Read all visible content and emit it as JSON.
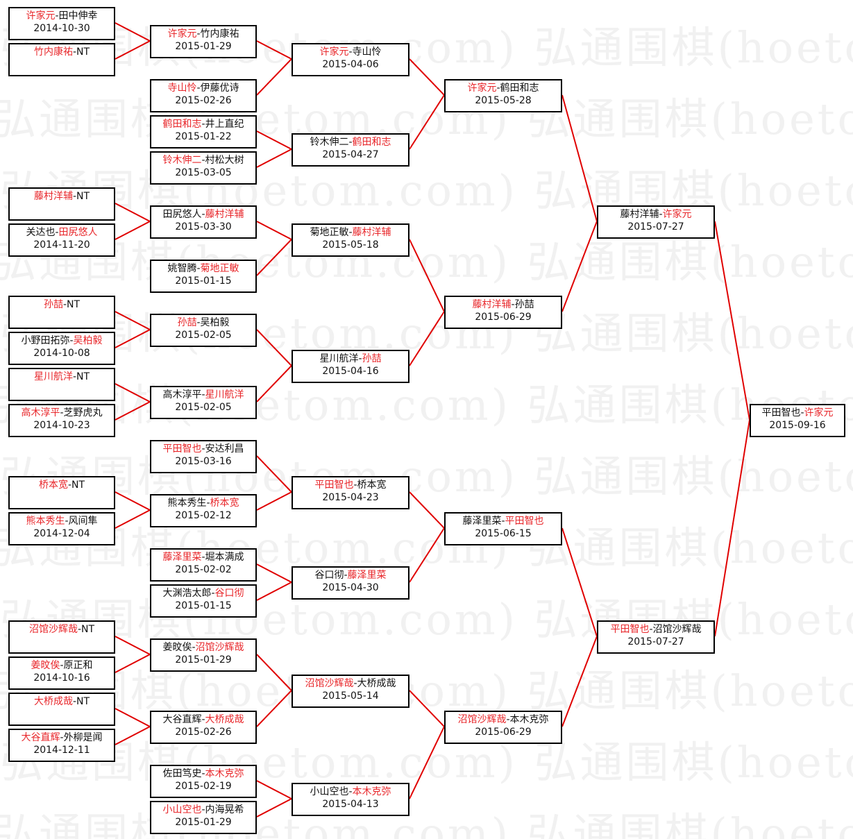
{
  "watermark": "弘通围棋(hoetom.com)",
  "colors": {
    "winner": "#e8262a",
    "connector": "#e00000",
    "border": "#000000"
  },
  "rounds": [
    [
      {
        "p1": "许家元",
        "p2": "田中伸幸",
        "winner": 1,
        "date": "2014-10-30"
      },
      {
        "p1": "竹内康祐",
        "p2": "NT",
        "winner": 1,
        "date": ""
      },
      {
        "p1": "藤村洋辅",
        "p2": "NT",
        "winner": 1,
        "date": ""
      },
      {
        "p1": "关达也",
        "p2": "田尻悠人",
        "winner": 2,
        "date": "2014-11-20"
      },
      {
        "p1": "孙喆",
        "p2": "NT",
        "winner": 1,
        "date": ""
      },
      {
        "p1": "小野田拓弥",
        "p2": "吴柏毅",
        "winner": 2,
        "date": "2014-10-08"
      },
      {
        "p1": "星川航洋",
        "p2": "NT",
        "winner": 1,
        "date": ""
      },
      {
        "p1": "高木淳平",
        "p2": "芝野虎丸",
        "winner": 1,
        "date": "2014-10-23"
      },
      {
        "p1": "桥本宽",
        "p2": "NT",
        "winner": 1,
        "date": ""
      },
      {
        "p1": "熊本秀生",
        "p2": "风间隼",
        "winner": 1,
        "date": "2014-12-04"
      },
      {
        "p1": "沼馆沙辉哉",
        "p2": "NT",
        "winner": 1,
        "date": ""
      },
      {
        "p1": "姜旼俟",
        "p2": "原正和",
        "winner": 1,
        "date": "2014-10-16"
      },
      {
        "p1": "大桥成哉",
        "p2": "NT",
        "winner": 1,
        "date": ""
      },
      {
        "p1": "大谷直辉",
        "p2": "外柳是闻",
        "winner": 1,
        "date": "2014-12-11"
      }
    ],
    [
      {
        "p1": "许家元",
        "p2": "竹内康祐",
        "winner": 1,
        "date": "2015-01-29"
      },
      {
        "p1": "寺山怜",
        "p2": "伊藤优诗",
        "winner": 1,
        "date": "2015-02-26"
      },
      {
        "p1": "鹤田和志",
        "p2": "井上直纪",
        "winner": 1,
        "date": "2015-01-22"
      },
      {
        "p1": "铃木伸二",
        "p2": "村松大树",
        "winner": 1,
        "date": "2015-03-05"
      },
      {
        "p1": "田尻悠人",
        "p2": "藤村洋辅",
        "winner": 2,
        "date": "2015-03-30"
      },
      {
        "p1": "姚智腾",
        "p2": "菊地正敏",
        "winner": 2,
        "date": "2015-01-15"
      },
      {
        "p1": "孙喆",
        "p2": "吴柏毅",
        "winner": 1,
        "date": "2015-02-05"
      },
      {
        "p1": "高木淳平",
        "p2": "星川航洋",
        "winner": 2,
        "date": "2015-02-05"
      },
      {
        "p1": "平田智也",
        "p2": "安达利昌",
        "winner": 1,
        "date": "2015-03-16"
      },
      {
        "p1": "熊本秀生",
        "p2": "桥本宽",
        "winner": 2,
        "date": "2015-02-12"
      },
      {
        "p1": "藤泽里菜",
        "p2": "堀本满成",
        "winner": 1,
        "date": "2015-02-02"
      },
      {
        "p1": "大渊浩太郎",
        "p2": "谷口彻",
        "winner": 2,
        "date": "2015-01-15"
      },
      {
        "p1": "姜旼俟",
        "p2": "沼馆沙辉哉",
        "winner": 2,
        "date": "2015-01-29"
      },
      {
        "p1": "大谷直辉",
        "p2": "大桥成哉",
        "winner": 2,
        "date": "2015-02-26"
      },
      {
        "p1": "佐田笃史",
        "p2": "本木克弥",
        "winner": 2,
        "date": "2015-02-19"
      },
      {
        "p1": "小山空也",
        "p2": "内海晃希",
        "winner": 1,
        "date": "2015-01-29"
      }
    ],
    [
      {
        "p1": "许家元",
        "p2": "寺山怜",
        "winner": 1,
        "date": "2015-04-06"
      },
      {
        "p1": "铃木伸二",
        "p2": "鹤田和志",
        "winner": 2,
        "date": "2015-04-27"
      },
      {
        "p1": "菊地正敏",
        "p2": "藤村洋辅",
        "winner": 2,
        "date": "2015-05-18"
      },
      {
        "p1": "星川航洋",
        "p2": "孙喆",
        "winner": 2,
        "date": "2015-04-16"
      },
      {
        "p1": "平田智也",
        "p2": "桥本宽",
        "winner": 1,
        "date": "2015-04-23"
      },
      {
        "p1": "谷口彻",
        "p2": "藤泽里菜",
        "winner": 2,
        "date": "2015-04-30"
      },
      {
        "p1": "沼馆沙辉哉",
        "p2": "大桥成哉",
        "winner": 1,
        "date": "2015-05-14"
      },
      {
        "p1": "小山空也",
        "p2": "本木克弥",
        "winner": 2,
        "date": "2015-04-13"
      }
    ],
    [
      {
        "p1": "许家元",
        "p2": "鹤田和志",
        "winner": 1,
        "date": "2015-05-28"
      },
      {
        "p1": "藤村洋辅",
        "p2": "孙喆",
        "winner": 1,
        "date": "2015-06-29"
      },
      {
        "p1": "藤泽里菜",
        "p2": "平田智也",
        "winner": 2,
        "date": "2015-06-15"
      },
      {
        "p1": "沼馆沙辉哉",
        "p2": "本木克弥",
        "winner": 1,
        "date": "2015-06-29"
      }
    ],
    [
      {
        "p1": "藤村洋辅",
        "p2": "许家元",
        "winner": 2,
        "date": "2015-07-27"
      },
      {
        "p1": "平田智也",
        "p2": "沼馆沙辉哉",
        "winner": 1,
        "date": "2015-07-27"
      }
    ],
    [
      {
        "p1": "平田智也",
        "p2": "许家元",
        "winner": 2,
        "date": "2015-09-16"
      }
    ]
  ]
}
